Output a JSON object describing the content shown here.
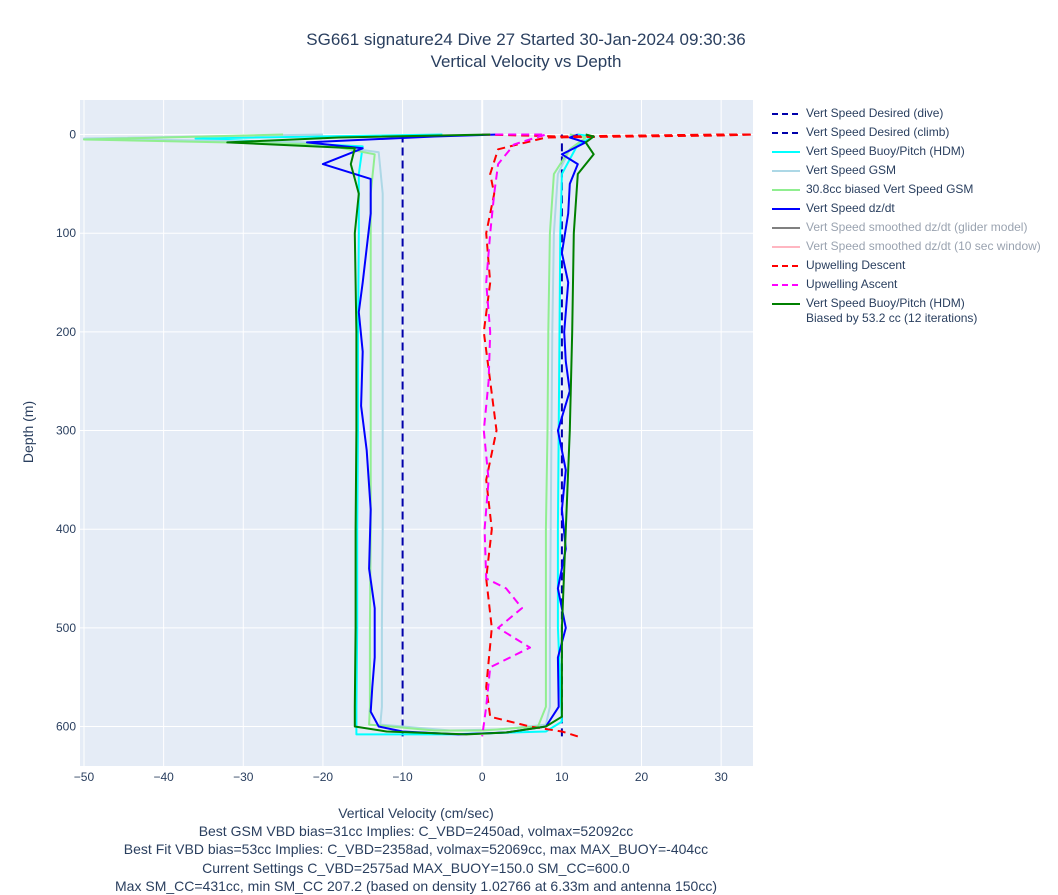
{
  "chart_data": {
    "type": "line",
    "title": "SG661 signature24 Dive 27 Started 30-Jan-2024 09:30:36",
    "subtitle": "Vertical Velocity vs Depth",
    "xlabel": "Vertical Velocity (cm/sec)",
    "ylabel": "Depth (m)",
    "xlim": [
      -50.5,
      34
    ],
    "ylim": [
      -35,
      640
    ],
    "y_reversed": true,
    "grid": true,
    "x_ticks": [
      -50,
      -40,
      -30,
      -20,
      -10,
      0,
      10,
      20,
      30
    ],
    "y_ticks": [
      0,
      100,
      200,
      300,
      400,
      500,
      600
    ],
    "x_tick_labels": [
      "−50",
      "−40",
      "−30",
      "−20",
      "−10",
      "0",
      "10",
      "20",
      "30"
    ],
    "y_tick_labels": [
      "0",
      "100",
      "200",
      "300",
      "400",
      "500",
      "600"
    ],
    "legend_position": "right",
    "notes": [
      "Best GSM VBD bias=31cc Implies: C_VBD=2450ad, volmax=52092cc",
      "Best Fit VBD bias=53cc Implies: C_VBD=2358ad, volmax=52069cc, max MAX_BUOY=-404cc",
      "Current Settings C_VBD=2575ad MAX_BUOY=150.0 SM_CC=600.0",
      "Max SM_CC=431cc, min SM_CC 207.2 (based on density 1.02766 at 6.33m and antenna 150cc)"
    ],
    "series": [
      {
        "name": "Vert Speed Desired (dive)",
        "color": "#0000aa",
        "dash": "dash",
        "visible": true,
        "points": [
          [
            -10,
            0
          ],
          [
            -10,
            610
          ]
        ]
      },
      {
        "name": "Vert Speed Desired (climb)",
        "color": "#0000aa",
        "dash": "dash",
        "visible": true,
        "points": [
          [
            10,
            610
          ],
          [
            10,
            0
          ]
        ]
      },
      {
        "name": "Vert Speed Buoy/Pitch (HDM)",
        "color": "#00ffff",
        "dash": "solid",
        "visible": true,
        "points": [
          [
            -5,
            0
          ],
          [
            -36,
            4
          ],
          [
            -15,
            12
          ],
          [
            -15.5,
            40
          ],
          [
            -15.5,
            100
          ],
          [
            -15.6,
            200
          ],
          [
            -15.6,
            300
          ],
          [
            -15.7,
            400
          ],
          [
            -15.7,
            500
          ],
          [
            -15.8,
            580
          ],
          [
            -15.8,
            608
          ],
          [
            -4,
            608
          ],
          [
            8,
            605
          ],
          [
            10,
            595
          ],
          [
            9.5,
            500
          ],
          [
            9.5,
            400
          ],
          [
            9.6,
            300
          ],
          [
            9.7,
            200
          ],
          [
            9.8,
            100
          ],
          [
            10,
            40
          ],
          [
            12,
            10
          ],
          [
            14,
            2
          ],
          [
            12,
            0
          ]
        ]
      },
      {
        "name": "Vert Speed GSM",
        "color": "#add8e6",
        "dash": "solid",
        "visible": true,
        "points": [
          [
            -20,
            0
          ],
          [
            -50,
            4
          ],
          [
            -22,
            8
          ],
          [
            -13,
            18
          ],
          [
            -12.5,
            60
          ],
          [
            -12.5,
            100
          ],
          [
            -12.5,
            200
          ],
          [
            -12.5,
            300
          ],
          [
            -12.5,
            400
          ],
          [
            -12.6,
            500
          ],
          [
            -12.6,
            580
          ],
          [
            -12.8,
            598
          ],
          [
            -4,
            604
          ],
          [
            2,
            603
          ],
          [
            8,
            598
          ],
          [
            8.5,
            580
          ],
          [
            8.5,
            500
          ],
          [
            8.6,
            400
          ],
          [
            8.7,
            300
          ],
          [
            8.8,
            200
          ],
          [
            9,
            100
          ],
          [
            9.5,
            40
          ],
          [
            11,
            15
          ],
          [
            13,
            3
          ],
          [
            11,
            0
          ]
        ]
      },
      {
        "name": "30.8cc biased Vert Speed GSM",
        "color": "#90ee90",
        "dash": "solid",
        "visible": true,
        "points": [
          [
            -25,
            0
          ],
          [
            -50,
            5
          ],
          [
            -20,
            10
          ],
          [
            -13.5,
            20
          ],
          [
            -14,
            60
          ],
          [
            -14,
            100
          ],
          [
            -14,
            200
          ],
          [
            -14,
            300
          ],
          [
            -14,
            400
          ],
          [
            -14.1,
            500
          ],
          [
            -14.1,
            580
          ],
          [
            -14.2,
            598
          ],
          [
            -6,
            604
          ],
          [
            0,
            604
          ],
          [
            7,
            600
          ],
          [
            8,
            580
          ],
          [
            8,
            500
          ],
          [
            8,
            400
          ],
          [
            8.2,
            300
          ],
          [
            8.3,
            200
          ],
          [
            8.5,
            100
          ],
          [
            9,
            40
          ],
          [
            11,
            15
          ],
          [
            13,
            3
          ],
          [
            11,
            0
          ]
        ]
      },
      {
        "name": "Vert Speed dz/dt",
        "color": "#0000ff",
        "dash": "solid",
        "visible": true,
        "points": [
          [
            2,
            0
          ],
          [
            -6,
            2
          ],
          [
            -22,
            8
          ],
          [
            -15,
            14
          ],
          [
            -20,
            30
          ],
          [
            -14,
            45
          ],
          [
            -14,
            80
          ],
          [
            -15,
            150
          ],
          [
            -15.5,
            180
          ],
          [
            -15,
            220
          ],
          [
            -15.2,
            275
          ],
          [
            -14.5,
            320
          ],
          [
            -14,
            380
          ],
          [
            -14.2,
            440
          ],
          [
            -13.5,
            480
          ],
          [
            -13.5,
            530
          ],
          [
            -13.8,
            560
          ],
          [
            -14,
            585
          ],
          [
            -13,
            600
          ],
          [
            -10,
            605
          ],
          [
            -3,
            608
          ],
          [
            3,
            606
          ],
          [
            8,
            600
          ],
          [
            9.6,
            580
          ],
          [
            9.5,
            530
          ],
          [
            10.5,
            500
          ],
          [
            9.5,
            460
          ],
          [
            10.5,
            420
          ],
          [
            10,
            380
          ],
          [
            10.5,
            340
          ],
          [
            9.5,
            300
          ],
          [
            11,
            260
          ],
          [
            10.5,
            230
          ],
          [
            10.3,
            200
          ],
          [
            10.8,
            150
          ],
          [
            10,
            120
          ],
          [
            10.8,
            80
          ],
          [
            11,
            50
          ],
          [
            12,
            30
          ],
          [
            10,
            20
          ],
          [
            13,
            8
          ],
          [
            11,
            3
          ],
          [
            12,
            0
          ]
        ]
      },
      {
        "name": "Vert Speed smoothed dz/dt (glider model)",
        "color": "#808080",
        "dash": "solid",
        "visible": false,
        "points": []
      },
      {
        "name": "Vert Speed smoothed dz/dt (10 sec window)",
        "color": "#ffb6c1",
        "dash": "solid",
        "visible": false,
        "points": []
      },
      {
        "name": "Upwelling Descent",
        "color": "#ff0000",
        "dash": "dash",
        "visible": true,
        "points": [
          [
            0,
            0
          ],
          [
            10,
            2
          ],
          [
            30,
            0
          ],
          [
            34,
            0
          ],
          [
            30,
            1
          ],
          [
            8,
            3
          ],
          [
            2,
            15
          ],
          [
            1,
            40
          ],
          [
            1.5,
            60
          ],
          [
            0.5,
            100
          ],
          [
            1,
            150
          ],
          [
            0.2,
            200
          ],
          [
            1,
            250
          ],
          [
            1.8,
            300
          ],
          [
            0.5,
            350
          ],
          [
            1.2,
            400
          ],
          [
            0.5,
            450
          ],
          [
            1.2,
            500
          ],
          [
            0.5,
            560
          ],
          [
            1,
            590
          ],
          [
            6,
            600
          ],
          [
            10,
            605
          ],
          [
            12,
            610
          ]
        ]
      },
      {
        "name": "Upwelling Ascent",
        "color": "#ff00ff",
        "dash": "dash",
        "visible": true,
        "points": [
          [
            0,
            0
          ],
          [
            3,
            0
          ],
          [
            8,
            0
          ],
          [
            4,
            10
          ],
          [
            2,
            30
          ],
          [
            1.5,
            60
          ],
          [
            1,
            100
          ],
          [
            0.5,
            150
          ],
          [
            1,
            200
          ],
          [
            0.8,
            250
          ],
          [
            0.2,
            300
          ],
          [
            0.8,
            350
          ],
          [
            0.3,
            400
          ],
          [
            0.5,
            450
          ],
          [
            3,
            460
          ],
          [
            5,
            480
          ],
          [
            2,
            500
          ],
          [
            6,
            520
          ],
          [
            1,
            540
          ],
          [
            0.5,
            580
          ],
          [
            0,
            610
          ]
        ]
      },
      {
        "name": "Vert Speed Buoy/Pitch (HDM)\nBiased by 53.2 cc (12 iterations)",
        "color": "#008000",
        "dash": "solid",
        "visible": true,
        "points": [
          [
            1,
            0
          ],
          [
            -18,
            3
          ],
          [
            -32,
            8
          ],
          [
            -16,
            14
          ],
          [
            -16.5,
            30
          ],
          [
            -16,
            45
          ],
          [
            -15.5,
            60
          ],
          [
            -16,
            100
          ],
          [
            -15.8,
            200
          ],
          [
            -15.8,
            300
          ],
          [
            -15.9,
            400
          ],
          [
            -15.9,
            500
          ],
          [
            -16,
            580
          ],
          [
            -16,
            600
          ],
          [
            -12,
            605
          ],
          [
            -2,
            608
          ],
          [
            3,
            606
          ],
          [
            8,
            600
          ],
          [
            10,
            590
          ],
          [
            10,
            500
          ],
          [
            10.5,
            400
          ],
          [
            11,
            300
          ],
          [
            11.3,
            200
          ],
          [
            11.5,
            100
          ],
          [
            12,
            40
          ],
          [
            14,
            20
          ],
          [
            13,
            8
          ],
          [
            14,
            2
          ],
          [
            13,
            0
          ]
        ]
      }
    ]
  }
}
